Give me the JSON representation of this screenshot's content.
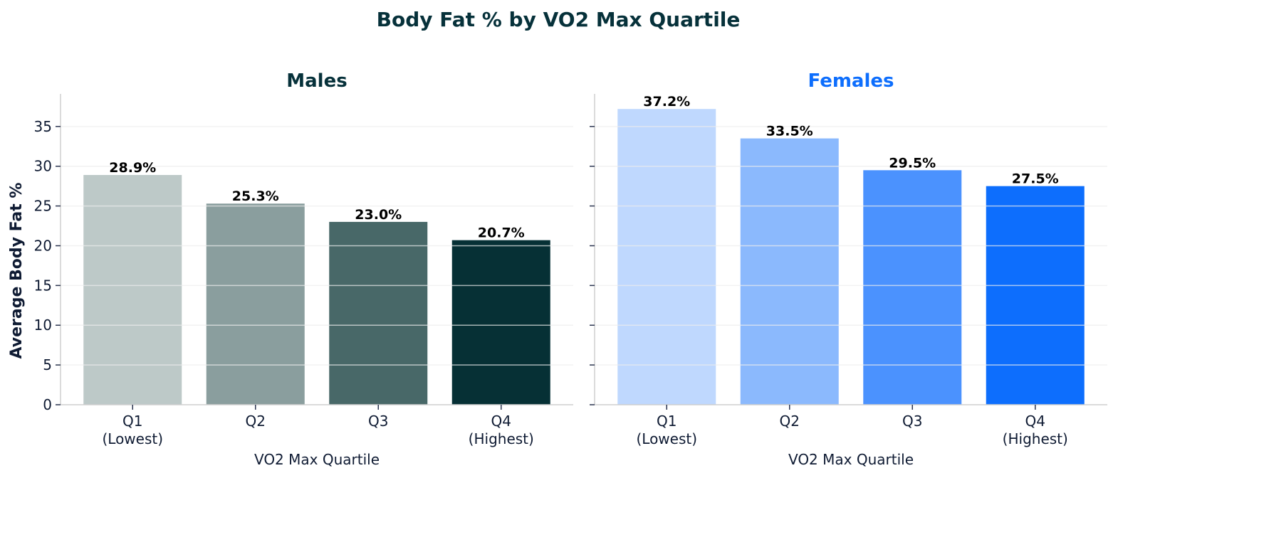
{
  "title": "Body Fat % by VO2 Max Quartile",
  "colors": {
    "title": "#06313a",
    "text": "#0f1b33",
    "grid": "#ececec",
    "spine": "#cfcfcf"
  },
  "chart_data": [
    {
      "type": "bar",
      "title": "Males",
      "title_color": "#06313a",
      "xlabel": "VO2 Max Quartile",
      "ylabel": "Average Body Fat %",
      "categories": [
        "Q1\n(Lowest)",
        "Q2",
        "Q3",
        "Q4\n(Highest)"
      ],
      "values": [
        28.9,
        25.3,
        23.0,
        20.7
      ],
      "data_labels": [
        "28.9%",
        "25.3%",
        "23.0%",
        "20.7%"
      ],
      "bar_colors": [
        "#bdc9c8",
        "#8a9e9e",
        "#486868",
        "#063035"
      ],
      "yticks": [
        0,
        5,
        10,
        15,
        20,
        25,
        30,
        35
      ],
      "ylim": [
        0,
        39.1
      ],
      "grid": "y"
    },
    {
      "type": "bar",
      "title": "Females",
      "title_color": "#0d6efd",
      "xlabel": "VO2 Max Quartile",
      "ylabel": "",
      "categories": [
        "Q1\n(Lowest)",
        "Q2",
        "Q3",
        "Q4\n(Highest)"
      ],
      "values": [
        37.2,
        33.5,
        29.5,
        27.5
      ],
      "data_labels": [
        "37.2%",
        "33.5%",
        "29.5%",
        "27.5%"
      ],
      "bar_colors": [
        "#bfd8fe",
        "#8bb9fd",
        "#4b92fe",
        "#0d6efd"
      ],
      "yticks": [
        0,
        5,
        10,
        15,
        20,
        25,
        30,
        35
      ],
      "ylim": [
        0,
        39.1
      ],
      "grid": "y",
      "shared_y": true
    }
  ]
}
